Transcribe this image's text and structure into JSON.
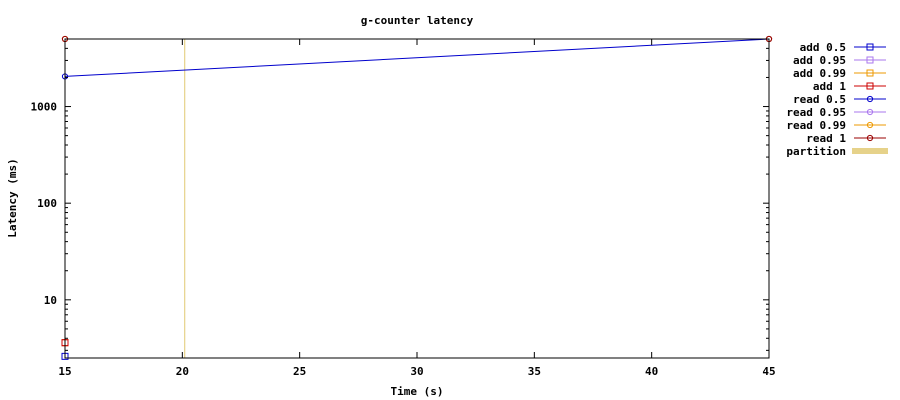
{
  "chart_data": {
    "type": "line",
    "title": "g-counter latency",
    "xlabel": "Time (s)",
    "ylabel": "Latency (ms)",
    "xlim": [
      15,
      45
    ],
    "ylim": [
      2.5,
      5000
    ],
    "yscale": "log",
    "x_ticks": [
      15,
      20,
      25,
      30,
      35,
      40,
      45
    ],
    "y_ticks": [
      10,
      100,
      1000
    ],
    "grid": false,
    "legend_position": "right",
    "series": [
      {
        "name": "add 0.5",
        "color": "#0000cc",
        "marker": "square",
        "points": [
          [
            15,
            2.6
          ]
        ]
      },
      {
        "name": "add 0.95",
        "color": "#aa77ee",
        "marker": "square",
        "points": [
          [
            15,
            3.6
          ]
        ]
      },
      {
        "name": "add 0.99",
        "color": "#ee9900",
        "marker": "square",
        "points": [
          [
            15,
            3.6
          ]
        ]
      },
      {
        "name": "add 1",
        "color": "#cc0000",
        "marker": "square",
        "points": [
          [
            15,
            3.6
          ]
        ]
      },
      {
        "name": "read 0.5",
        "color": "#0000cc",
        "marker": "circle",
        "points": [
          [
            15,
            2050
          ],
          [
            45,
            5000
          ]
        ]
      },
      {
        "name": "read 0.95",
        "color": "#aa77ee",
        "marker": "circle",
        "points": [
          [
            15,
            5000
          ],
          [
            45,
            5000
          ]
        ]
      },
      {
        "name": "read 0.99",
        "color": "#ee9900",
        "marker": "circle",
        "points": [
          [
            15,
            5000
          ],
          [
            45,
            5000
          ]
        ]
      },
      {
        "name": "read 1",
        "color": "#990000",
        "marker": "circle",
        "points": [
          [
            15,
            5000
          ],
          [
            45,
            5000
          ]
        ]
      }
    ],
    "partition": {
      "name": "partition",
      "color": "#e6d28a",
      "intervals": [
        [
          20.1,
          20.1
        ]
      ]
    }
  }
}
